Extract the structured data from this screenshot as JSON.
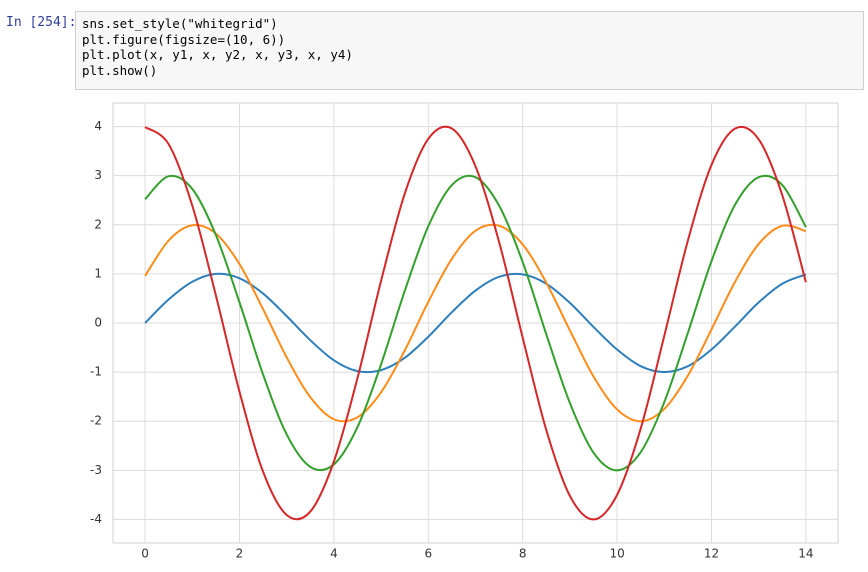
{
  "cell": {
    "prompt": "In [254]:",
    "code": [
      "sns.set_style(\"whitegrid\")",
      "plt.figure(figsize=(10, 6))",
      "plt.plot(x, y1, x, y2, x, y3, x, y4)",
      "plt.show()"
    ]
  },
  "chart_data": {
    "type": "line",
    "x": [
      0,
      0.5,
      1,
      1.5,
      2,
      2.5,
      3,
      3.5,
      4,
      4.5,
      5,
      5.5,
      6,
      6.5,
      7,
      7.5,
      8,
      8.5,
      9,
      9.5,
      10,
      10.5,
      11,
      11.5,
      12,
      12.5,
      13,
      13.5,
      14
    ],
    "series": [
      {
        "color": "#2e7ebc",
        "values": [
          0,
          0.48,
          0.84,
          1.0,
          0.91,
          0.6,
          0.14,
          -0.35,
          -0.76,
          -0.98,
          -0.96,
          -0.71,
          -0.28,
          0.22,
          0.66,
          0.94,
          0.99,
          0.8,
          0.41,
          -0.08,
          -0.54,
          -0.88,
          -1.0,
          -0.88,
          -0.54,
          -0.07,
          0.42,
          0.8,
          0.99
        ]
      },
      {
        "color": "#ff8c1a",
        "values": [
          0.96,
          1.68,
          1.99,
          1.82,
          1.2,
          0.28,
          -0.7,
          -1.51,
          -1.96,
          -1.92,
          -1.41,
          -0.56,
          0.43,
          1.31,
          1.88,
          1.98,
          1.6,
          0.82,
          -0.15,
          -1.09,
          -1.76,
          -2.0,
          -1.75,
          -1.07,
          -0.13,
          0.84,
          1.61,
          1.98,
          1.87
        ]
      },
      {
        "color": "#33a02c",
        "values": [
          2.52,
          2.99,
          2.73,
          1.79,
          0.42,
          -1.05,
          -2.27,
          -2.93,
          -2.88,
          -2.12,
          -0.84,
          0.65,
          1.97,
          2.81,
          2.97,
          2.39,
          1.24,
          -0.23,
          -1.63,
          -2.64,
          -3.0,
          -2.63,
          -1.61,
          -0.2,
          1.26,
          2.41,
          2.97,
          2.81,
          1.95
        ]
      },
      {
        "color": "#d62728",
        "values": [
          3.99,
          3.64,
          2.39,
          0.56,
          -1.4,
          -3.03,
          -3.91,
          -3.84,
          -2.82,
          -1.12,
          0.86,
          2.63,
          3.75,
          3.96,
          3.19,
          1.65,
          -0.3,
          -2.18,
          -3.52,
          -4.0,
          -3.5,
          -2.15,
          -0.26,
          1.68,
          3.22,
          3.96,
          3.74,
          2.6,
          0.83
        ]
      }
    ],
    "xlim": [
      -0.68,
      14.68
    ],
    "ylim": [
      -4.48,
      4.48
    ],
    "xticks": [
      0,
      2,
      4,
      6,
      8,
      10,
      12,
      14
    ],
    "yticks": [
      -4,
      -3,
      -2,
      -1,
      0,
      1,
      2,
      3,
      4
    ],
    "grid": true
  }
}
